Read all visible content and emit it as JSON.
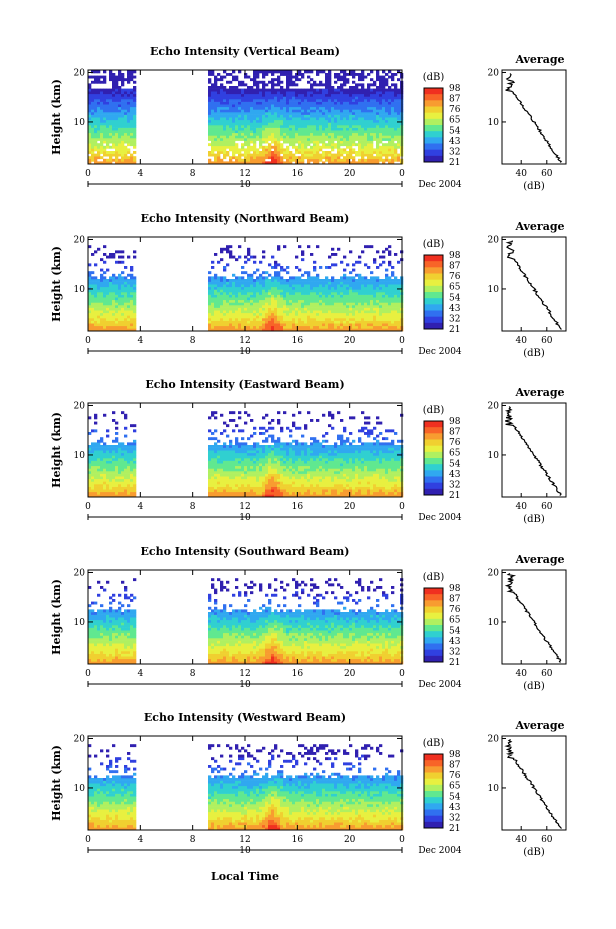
{
  "figure": {
    "x_axis_label": "Local Time",
    "colorbar_unit": "(dB)",
    "colorbar_ticks": [
      "98",
      "87",
      "76",
      "65",
      "54",
      "43",
      "32",
      "21"
    ],
    "colorbar_colors": [
      "#f03020",
      "#f86428",
      "#f89c30",
      "#f0d030",
      "#e8f040",
      "#b0f060",
      "#60e890",
      "#30d0d0",
      "#30a8f0",
      "#3070f0",
      "#3040e0",
      "#3020b0"
    ],
    "profile_title": "Average",
    "profile_unit": "(dB)"
  },
  "chart_data": [
    {
      "type": "heatmap",
      "title": "Echo Intensity (Vertical Beam)",
      "ylabel": "Height (km)",
      "xlabel": "Local Time",
      "x_ticks": [
        "0",
        "4",
        "8",
        "12",
        "16",
        "20",
        "0"
      ],
      "x_range_hours": [
        0,
        24
      ],
      "y_ticks": [
        "20",
        "10"
      ],
      "y_range_km": [
        1.5,
        20.5
      ],
      "date_label": "10",
      "date_suffix": "Dec 2004",
      "color_unit": "dB",
      "color_range_db": [
        21,
        98
      ],
      "data_gap_hours": [
        3.5,
        9
      ],
      "profile": {
        "title": "Average",
        "xlabel": "(dB)",
        "x_ticks": [
          "40",
          "60"
        ],
        "x_range_db": [
          25,
          75
        ],
        "y_ticks": [
          "20",
          "10"
        ]
      }
    },
    {
      "type": "heatmap",
      "title": "Echo Intensity (Northward Beam)",
      "ylabel": "Height (km)",
      "xlabel": "Local Time",
      "x_ticks": [
        "0",
        "4",
        "8",
        "12",
        "16",
        "20",
        "0"
      ],
      "x_range_hours": [
        0,
        24
      ],
      "y_ticks": [
        "20",
        "10"
      ],
      "y_range_km": [
        1.5,
        20.5
      ],
      "date_label": "10",
      "date_suffix": "Dec 2004",
      "color_unit": "dB",
      "color_range_db": [
        21,
        98
      ],
      "data_gap_hours": [
        3.5,
        9
      ],
      "profile": {
        "title": "Average",
        "xlabel": "(dB)",
        "x_ticks": [
          "40",
          "60"
        ],
        "x_range_db": [
          25,
          75
        ],
        "y_ticks": [
          "20",
          "10"
        ]
      }
    },
    {
      "type": "heatmap",
      "title": "Echo Intensity (Eastward Beam)",
      "ylabel": "Height (km)",
      "xlabel": "Local Time",
      "x_ticks": [
        "0",
        "4",
        "8",
        "12",
        "16",
        "20",
        "0"
      ],
      "x_range_hours": [
        0,
        24
      ],
      "y_ticks": [
        "20",
        "10"
      ],
      "y_range_km": [
        1.5,
        20.5
      ],
      "date_label": "10",
      "date_suffix": "Dec 2004",
      "color_unit": "dB",
      "color_range_db": [
        21,
        98
      ],
      "data_gap_hours": [
        3.5,
        9
      ],
      "profile": {
        "title": "Average",
        "xlabel": "(dB)",
        "x_ticks": [
          "40",
          "60"
        ],
        "x_range_db": [
          25,
          75
        ],
        "y_ticks": [
          "20",
          "10"
        ]
      }
    },
    {
      "type": "heatmap",
      "title": "Echo Intensity (Southward Beam)",
      "ylabel": "Height (km)",
      "xlabel": "Local Time",
      "x_ticks": [
        "0",
        "4",
        "8",
        "12",
        "16",
        "20",
        "0"
      ],
      "x_range_hours": [
        0,
        24
      ],
      "y_ticks": [
        "20",
        "10"
      ],
      "y_range_km": [
        1.5,
        20.5
      ],
      "date_label": "10",
      "date_suffix": "Dec 2004",
      "color_unit": "dB",
      "color_range_db": [
        21,
        98
      ],
      "data_gap_hours": [
        3.5,
        9
      ],
      "profile": {
        "title": "Average",
        "xlabel": "(dB)",
        "x_ticks": [
          "40",
          "60"
        ],
        "x_range_db": [
          25,
          75
        ],
        "y_ticks": [
          "20",
          "10"
        ]
      }
    },
    {
      "type": "heatmap",
      "title": "Echo Intensity (Westward Beam)",
      "ylabel": "Height (km)",
      "xlabel": "Local Time",
      "x_ticks": [
        "0",
        "4",
        "8",
        "12",
        "16",
        "20",
        "0"
      ],
      "x_range_hours": [
        0,
        24
      ],
      "y_ticks": [
        "20",
        "10"
      ],
      "y_range_km": [
        1.5,
        20.5
      ],
      "date_label": "10",
      "date_suffix": "Dec 2004",
      "color_unit": "dB",
      "color_range_db": [
        21,
        98
      ],
      "data_gap_hours": [
        3.5,
        9
      ],
      "profile": {
        "title": "Average",
        "xlabel": "(dB)",
        "x_ticks": [
          "40",
          "60"
        ],
        "x_range_db": [
          25,
          75
        ],
        "y_ticks": [
          "20",
          "10"
        ]
      }
    }
  ]
}
